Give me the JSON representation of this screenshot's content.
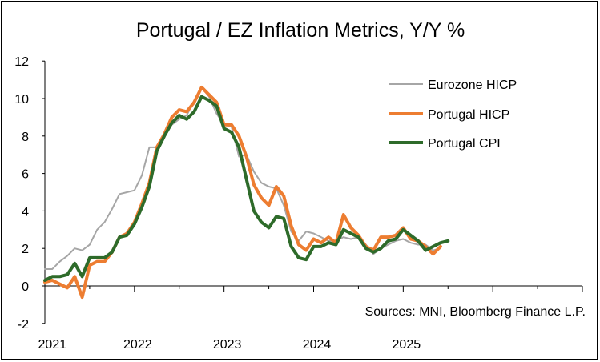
{
  "chart_data": {
    "type": "line",
    "title": "Portugal / EZ Inflation Metrics, Y/Y %",
    "xlabel": "",
    "ylabel": "",
    "ylim": [
      -2,
      12
    ],
    "yticks": [
      -2,
      0,
      2,
      4,
      6,
      8,
      10,
      12
    ],
    "xticks": [
      "2021",
      "2022",
      "2023",
      "2024",
      "2025"
    ],
    "x_start": "2021-01",
    "x_end": "2026-12",
    "grid": false,
    "legend_position": "top-right",
    "source_note": "Sources: MNI, Bloomberg Finance L.P.",
    "series": [
      {
        "name": "Eurozone HICP",
        "color": "#a6a6a6",
        "values": [
          0.9,
          0.9,
          1.3,
          1.6,
          2.0,
          1.9,
          2.2,
          3.0,
          3.4,
          4.1,
          4.9,
          5.0,
          5.1,
          5.9,
          7.4,
          7.4,
          8.1,
          8.6,
          8.9,
          9.1,
          9.9,
          10.6,
          10.1,
          9.2,
          8.6,
          8.5,
          6.9,
          7.0,
          6.1,
          5.5,
          5.3,
          5.2,
          4.3,
          2.9,
          2.4,
          2.9,
          2.8,
          2.6,
          2.4,
          2.4,
          2.6,
          2.5,
          2.6,
          2.2,
          1.7,
          2.0,
          2.2,
          2.4,
          2.5,
          2.3,
          2.2,
          2.2,
          1.9,
          2.0
        ]
      },
      {
        "name": "Portugal HICP",
        "color": "#ed7d31",
        "values": [
          0.2,
          0.3,
          0.1,
          -0.1,
          0.5,
          -0.6,
          1.1,
          1.3,
          1.3,
          1.8,
          2.6,
          2.8,
          3.4,
          4.4,
          5.5,
          7.4,
          8.1,
          9.0,
          9.4,
          9.3,
          9.8,
          10.6,
          10.2,
          9.8,
          8.6,
          8.6,
          8.0,
          6.9,
          5.4,
          4.7,
          4.3,
          5.3,
          4.8,
          3.2,
          2.2,
          1.9,
          2.5,
          2.3,
          2.6,
          2.3,
          3.8,
          3.1,
          2.7,
          2.1,
          1.9,
          2.6,
          2.6,
          2.7,
          3.1,
          2.5,
          2.4,
          2.1,
          1.7,
          2.1
        ]
      },
      {
        "name": "Portugal CPI",
        "color": "#2e6b2a",
        "values": [
          0.3,
          0.5,
          0.5,
          0.6,
          1.2,
          0.5,
          1.5,
          1.5,
          1.5,
          1.8,
          2.6,
          2.7,
          3.3,
          4.2,
          5.3,
          7.2,
          8.0,
          8.7,
          9.1,
          8.9,
          9.3,
          10.1,
          9.9,
          9.6,
          8.4,
          8.2,
          7.4,
          5.7,
          4.0,
          3.4,
          3.1,
          3.7,
          3.6,
          2.1,
          1.5,
          1.4,
          2.1,
          2.1,
          2.3,
          2.2,
          3.0,
          2.8,
          2.6,
          2.0,
          1.8,
          2.0,
          2.4,
          2.5,
          3.0,
          2.7,
          2.4,
          1.9,
          2.1,
          2.3,
          2.4
        ]
      }
    ]
  }
}
